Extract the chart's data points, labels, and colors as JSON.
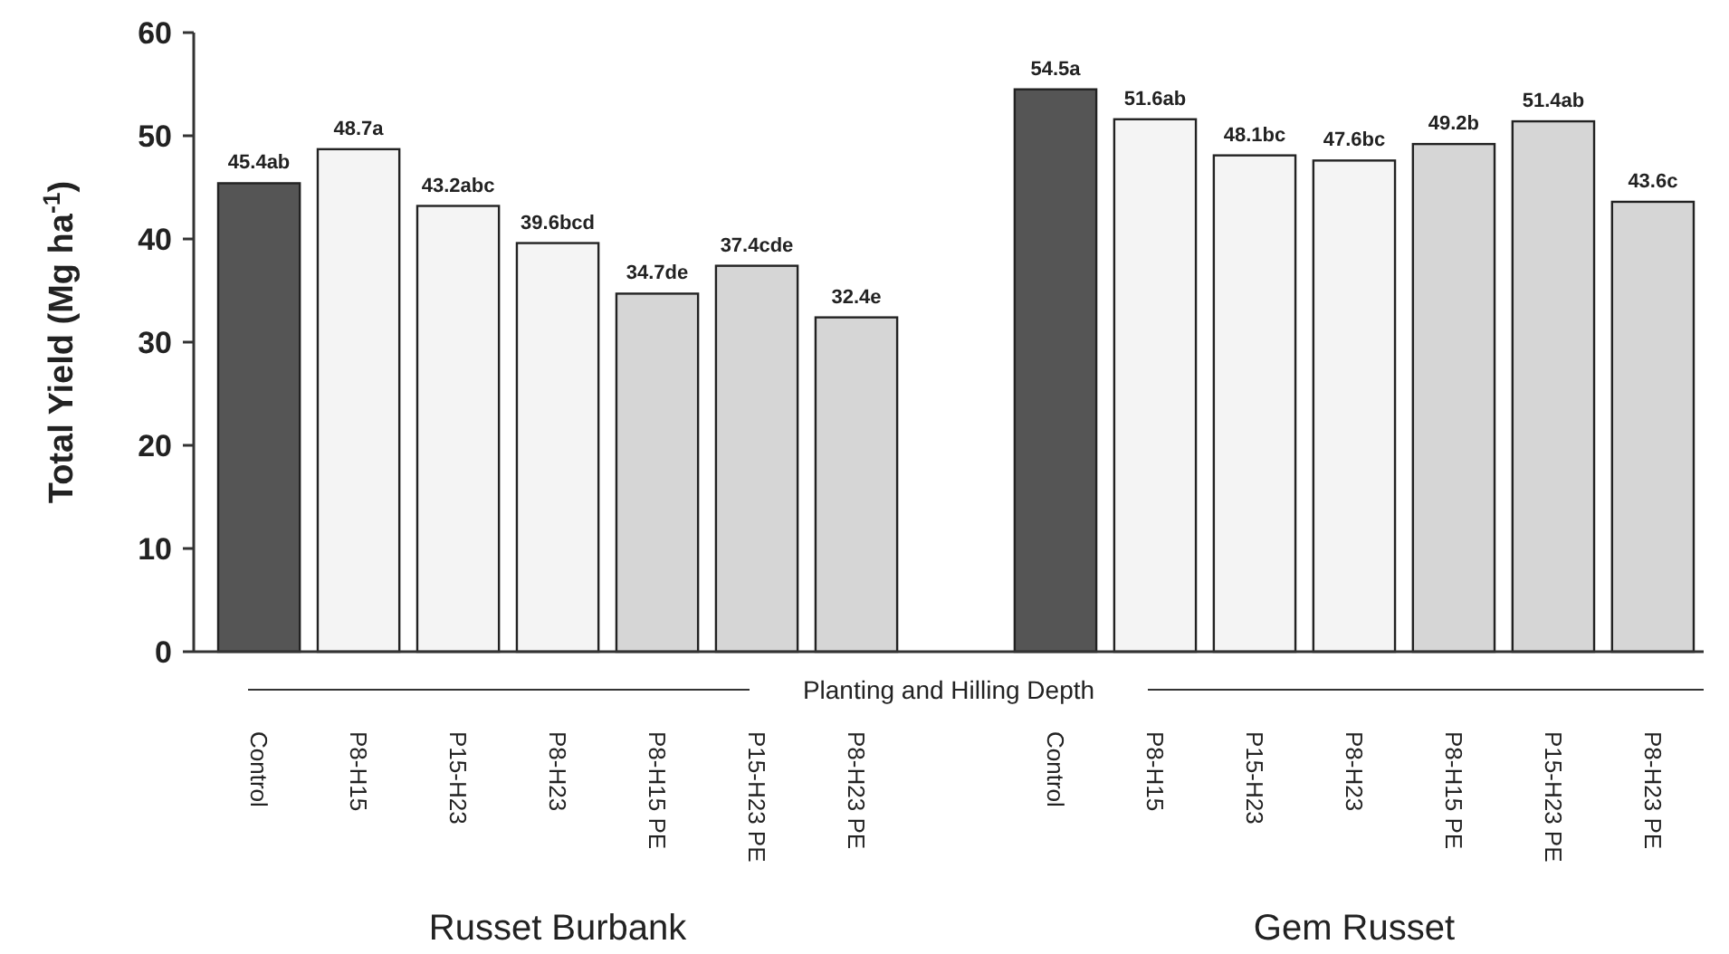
{
  "chart_data": {
    "type": "bar",
    "xlabel": "Planting and Hilling Depth",
    "ylabel": "Total Yield (Mg ha$^{-1}$)",
    "categories": [
      "Control",
      "P8-H15",
      "P15-H23",
      "P8-H23",
      "P8-H15 PE",
      "P15-H23 PE",
      "P8-H23 PE",
      null,
      "Control",
      "P8-H15",
      "P15-H23",
      "P8-H23",
      "P8-H15 PE",
      "P15-H23 PE",
      "P8-H23 PE"
    ],
    "values": [
      45.4,
      48.7,
      43.2,
      39.6,
      34.7,
      37.4,
      32.4,
      null,
      54.5,
      51.6,
      48.1,
      47.6,
      49.2,
      51.4,
      43.6
    ],
    "value_labels": [
      "45.4ab",
      "48.7a",
      "43.2abc",
      "39.6bcd",
      "34.7de",
      "37.4cde",
      "32.4e",
      null,
      "54.5a",
      "51.6ab",
      "48.1bc",
      "47.6bc",
      "49.2b",
      "51.4ab",
      "43.6c"
    ],
    "colors": [
      "#555555",
      "#f4f4f4",
      "#f4f4f4",
      "#f4f4f4",
      "#d6d6d6",
      "#d6d6d6",
      "#d6d6d6",
      null,
      "#555555",
      "#f4f4f4",
      "#f4f4f4",
      "#f4f4f4",
      "#d6d6d6",
      "#d6d6d6",
      "#d6d6d6"
    ],
    "annotations": [
      "Russet Burbank",
      "Gem Russet"
    ],
    "ylim": [
      0,
      60
    ],
    "yticks": [
      0,
      10,
      20,
      30,
      40,
      50,
      60
    ],
    "grid": false
  }
}
